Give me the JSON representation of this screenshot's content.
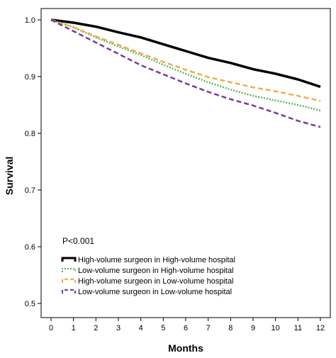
{
  "chart_data": {
    "type": "line",
    "xlabel": "Months",
    "ylabel": "Survival",
    "xlim": [
      0,
      12
    ],
    "ylim": [
      0.5,
      1.0
    ],
    "x_ticks": [
      0,
      1,
      2,
      3,
      4,
      5,
      6,
      7,
      8,
      9,
      10,
      11,
      12
    ],
    "y_ticks": [
      0.5,
      0.6,
      0.7,
      0.8,
      0.9,
      1.0
    ],
    "y_tick_labels": [
      "0.5",
      "0.6",
      "0.7",
      "0.8",
      "0.9",
      "1.0"
    ],
    "grid": false,
    "annotation": "P<0.001",
    "legend_position": "lower-left",
    "x": [
      0,
      1,
      2,
      3,
      4,
      5,
      6,
      7,
      8,
      9,
      10,
      11,
      12
    ],
    "series": [
      {
        "name": "High-volume surgeon in High-volume hospital",
        "color": "#000000",
        "style": "solid",
        "values": [
          1.0,
          0.995,
          0.988,
          0.978,
          0.969,
          0.957,
          0.945,
          0.933,
          0.924,
          0.913,
          0.905,
          0.895,
          0.882
        ]
      },
      {
        "name": "Low-volume surgeon in High-volume hospital",
        "color": "#5cb85c",
        "style": "dotted",
        "values": [
          1.0,
          0.987,
          0.969,
          0.953,
          0.938,
          0.921,
          0.905,
          0.89,
          0.877,
          0.866,
          0.858,
          0.85,
          0.84
        ]
      },
      {
        "name": "High-volume surgeon in Low-volume hospital",
        "color": "#f0ad4e",
        "style": "dashed",
        "values": [
          1.0,
          0.987,
          0.971,
          0.956,
          0.941,
          0.926,
          0.912,
          0.899,
          0.89,
          0.881,
          0.874,
          0.866,
          0.857
        ]
      },
      {
        "name": "Low-volume surgeon in Low-volume hospital",
        "color": "#7d3c98",
        "style": "dashed",
        "values": [
          1.0,
          0.98,
          0.96,
          0.94,
          0.92,
          0.904,
          0.888,
          0.873,
          0.86,
          0.849,
          0.836,
          0.822,
          0.811
        ]
      }
    ]
  }
}
